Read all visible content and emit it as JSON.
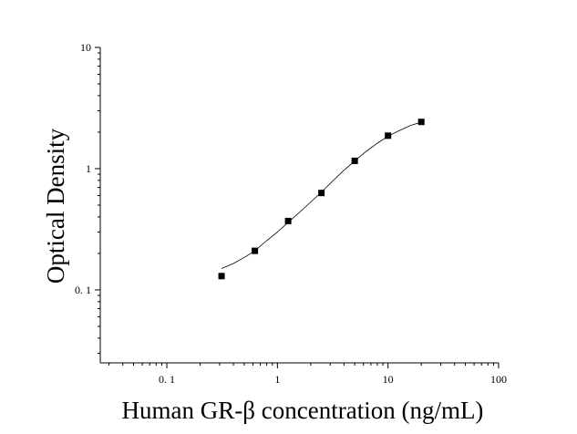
{
  "chart_data": {
    "type": "scatter",
    "title": "",
    "xlabel": "Human GR-β concentration (ng/mL)",
    "ylabel": "Optical Density",
    "x_scale": "log",
    "y_scale": "log",
    "xlim": [
      0.025,
      100
    ],
    "ylim": [
      0.025,
      10
    ],
    "x_ticks": [
      {
        "value": 0.1,
        "label": "0. 1"
      },
      {
        "value": 1,
        "label": "1"
      },
      {
        "value": 10,
        "label": "10"
      },
      {
        "value": 100,
        "label": "100"
      }
    ],
    "y_ticks": [
      {
        "value": 0.1,
        "label": "0. 1"
      },
      {
        "value": 1,
        "label": "1"
      },
      {
        "value": 10,
        "label": "10"
      }
    ],
    "grid": false,
    "legend": "none",
    "series": [
      {
        "marker": "square",
        "color": "#000000",
        "x": [
          0.3125,
          0.625,
          1.25,
          2.5,
          5,
          10,
          20
        ],
        "y": [
          0.13,
          0.21,
          0.37,
          0.63,
          1.16,
          1.87,
          2.43
        ]
      }
    ],
    "fit_curve": {
      "color": "#000000",
      "x": [
        0.3125,
        0.4,
        0.5,
        0.625,
        0.8,
        1,
        1.25,
        1.6,
        2,
        2.5,
        3.2,
        4,
        5,
        6.3,
        8,
        10,
        12.5,
        16,
        20
      ],
      "y": [
        0.15,
        0.165,
        0.185,
        0.21,
        0.255,
        0.3,
        0.36,
        0.44,
        0.53,
        0.64,
        0.8,
        0.97,
        1.16,
        1.38,
        1.62,
        1.85,
        2.05,
        2.27,
        2.42
      ]
    }
  }
}
